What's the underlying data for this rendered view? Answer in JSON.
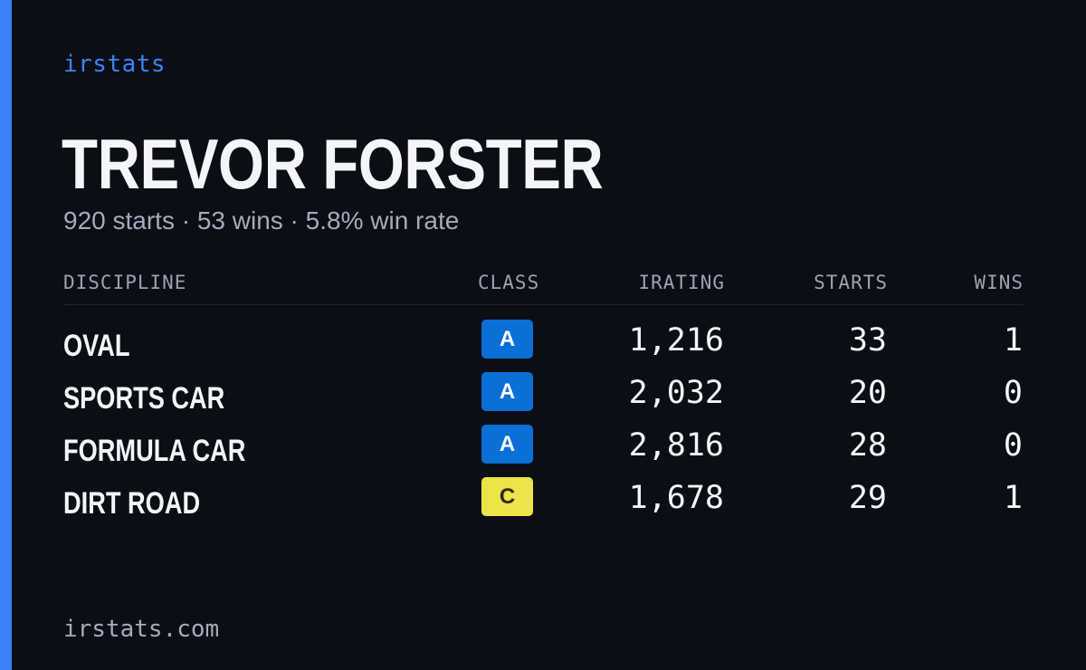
{
  "brand": "irstats",
  "driver": {
    "name": "TREVOR FORSTER",
    "summary": "920 starts · 53 wins · 5.8% win rate"
  },
  "colors": {
    "accent": "#3b82f6",
    "background": "#0b0e15",
    "class_A": "#0a6fd6",
    "class_C": "#ede34a"
  },
  "table": {
    "headers": {
      "discipline": "DISCIPLINE",
      "class": "CLASS",
      "irating": "IRATING",
      "starts": "STARTS",
      "wins": "WINS"
    },
    "rows": [
      {
        "discipline": "OVAL",
        "class": "A",
        "irating": "1,216",
        "starts": "33",
        "wins": "1"
      },
      {
        "discipline": "SPORTS CAR",
        "class": "A",
        "irating": "2,032",
        "starts": "20",
        "wins": "0"
      },
      {
        "discipline": "FORMULA CAR",
        "class": "A",
        "irating": "2,816",
        "starts": "28",
        "wins": "0"
      },
      {
        "discipline": "DIRT ROAD",
        "class": "C",
        "irating": "1,678",
        "starts": "29",
        "wins": "1"
      }
    ]
  },
  "footer": {
    "url": "irstats.com"
  }
}
